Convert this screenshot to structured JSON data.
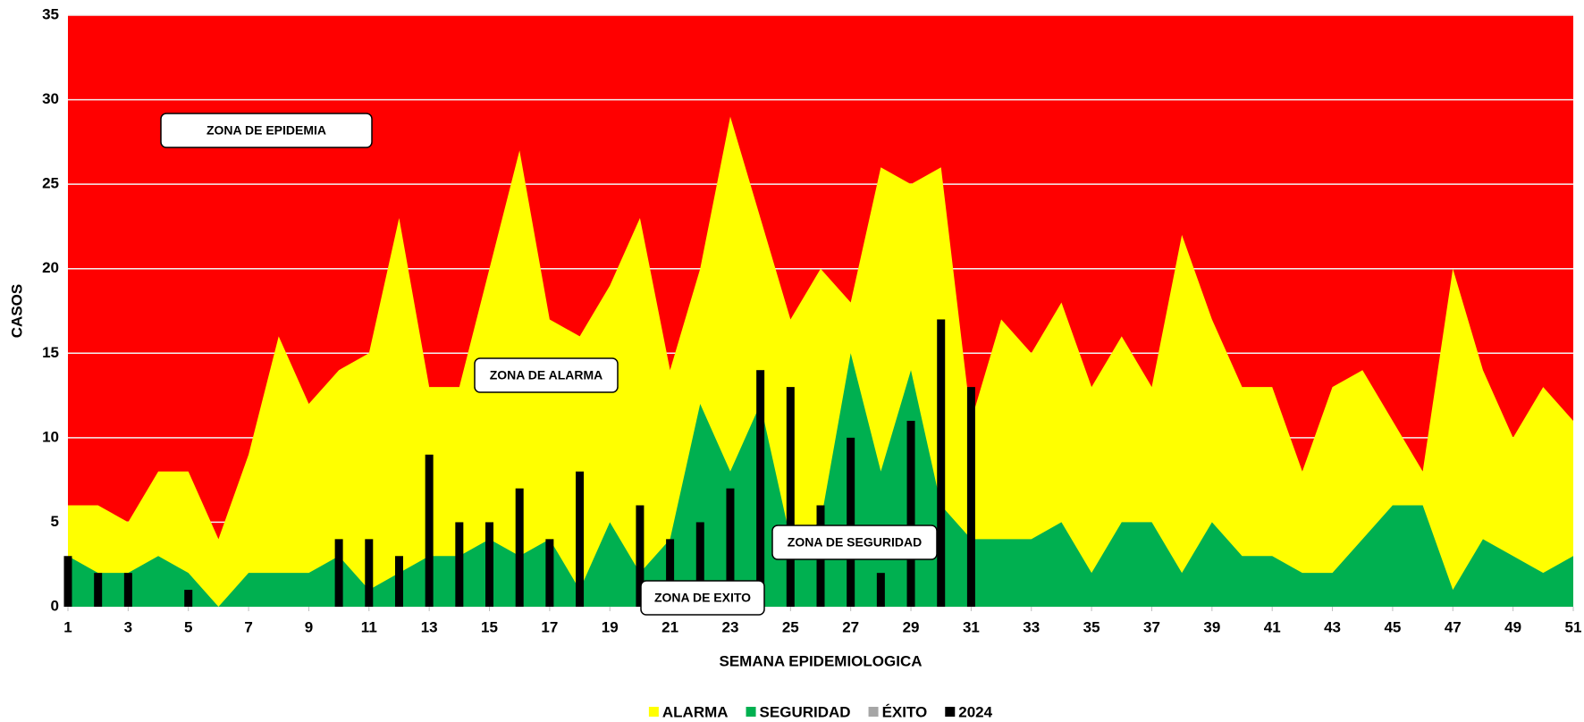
{
  "chart_data": {
    "type": "area",
    "x_label": "SEMANA EPIDEMIOLOGICA",
    "y_label": "CASOS",
    "zone_color": "#ff0000",
    "x": [
      1,
      2,
      3,
      4,
      5,
      6,
      7,
      8,
      9,
      10,
      11,
      12,
      13,
      14,
      15,
      16,
      17,
      18,
      19,
      20,
      21,
      22,
      23,
      24,
      25,
      26,
      27,
      28,
      29,
      30,
      31,
      32,
      33,
      34,
      35,
      36,
      37,
      38,
      39,
      40,
      41,
      42,
      43,
      44,
      45,
      46,
      47,
      48,
      49,
      50,
      51
    ],
    "xlim": [
      1,
      51
    ],
    "xticks": [
      1,
      3,
      5,
      7,
      9,
      11,
      13,
      15,
      17,
      19,
      21,
      23,
      25,
      27,
      29,
      31,
      33,
      35,
      37,
      39,
      41,
      43,
      45,
      47,
      49,
      51
    ],
    "ylim": [
      0,
      35
    ],
    "yticks": [
      0,
      5,
      10,
      15,
      20,
      25,
      30,
      35
    ],
    "grid": true,
    "series": [
      {
        "name": "ALARMA",
        "type": "area",
        "color": "#ffff00",
        "values": [
          6,
          6,
          5,
          8,
          8,
          4,
          9,
          16,
          12,
          14,
          15,
          23,
          13,
          13,
          20,
          27,
          17,
          16,
          19,
          23,
          14,
          20,
          29,
          23,
          17,
          20,
          18,
          26,
          25,
          26,
          11,
          17,
          15,
          18,
          13,
          16,
          13,
          22,
          17,
          13,
          13,
          8,
          13,
          14,
          11,
          8,
          20,
          14,
          10,
          13,
          11
        ]
      },
      {
        "name": "SEGURIDAD",
        "type": "area",
        "color": "#00b050",
        "values": [
          3,
          2,
          2,
          3,
          2,
          0,
          2,
          2,
          2,
          3,
          1,
          2,
          3,
          3,
          4,
          3,
          4,
          1,
          5,
          2,
          4,
          12,
          8,
          12,
          4,
          5,
          15,
          8,
          14,
          6,
          4,
          4,
          4,
          5,
          2,
          5,
          5,
          2,
          5,
          3,
          3,
          2,
          2,
          4,
          6,
          6,
          1,
          4,
          3,
          2,
          3
        ]
      },
      {
        "name": "ÉXITO",
        "type": "area",
        "color": "#a6a6a6",
        "values": [
          0,
          0,
          0,
          0,
          0,
          0,
          0,
          0,
          0,
          0,
          0,
          0,
          0,
          0,
          0,
          0,
          0,
          0,
          0,
          0,
          0,
          0,
          0,
          0,
          0,
          0,
          0,
          0,
          0,
          0,
          0,
          0,
          0,
          0,
          0,
          0,
          0,
          0,
          0,
          0,
          0,
          0,
          0,
          0,
          0,
          0,
          0,
          0,
          0,
          0,
          0
        ]
      },
      {
        "name": "2024",
        "type": "bar",
        "color": "#000000",
        "values": [
          3,
          2,
          2,
          0,
          1,
          0,
          0,
          0,
          0,
          4,
          4,
          3,
          9,
          5,
          5,
          7,
          4,
          8,
          0,
          6,
          4,
          5,
          7,
          14,
          13,
          6,
          10,
          2,
          11,
          17,
          13,
          null,
          null,
          null,
          null,
          null,
          null,
          null,
          null,
          null,
          null,
          null,
          null,
          null,
          null,
          null,
          null,
          null,
          null,
          null,
          null
        ]
      }
    ],
    "annotations": [
      "ZONA DE EPIDEMIA",
      "ZONA DE ALARMA",
      "ZONA DE SEGURIDAD",
      "ZONA DE EXITO"
    ]
  }
}
